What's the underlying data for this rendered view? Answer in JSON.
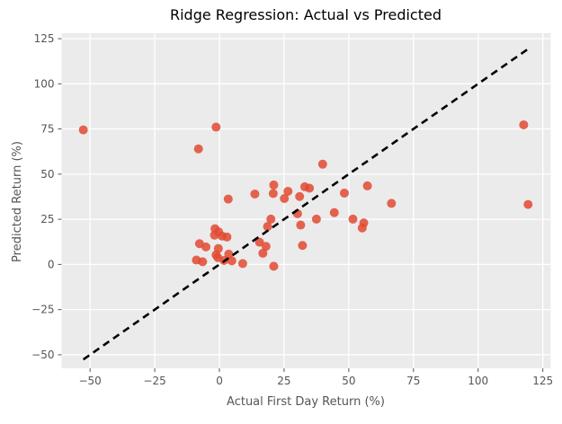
{
  "chart_data": {
    "type": "scatter",
    "title": "Ridge Regression: Actual vs Predicted",
    "xlabel": "Actual First Day Return (%)",
    "ylabel": "Predicted Return (%)",
    "xlim": [
      -61,
      128
    ],
    "ylim": [
      -57.5,
      128
    ],
    "xticks": [
      -50,
      -25,
      0,
      25,
      50,
      75,
      100,
      125
    ],
    "yticks": [
      -50,
      -25,
      0,
      25,
      50,
      75,
      100,
      125
    ],
    "grid": true,
    "legend": "none",
    "style": "ggplot-gray",
    "colors": {
      "figure_background": "#ffffff",
      "axes_background": "#ebebeb",
      "grid": "#ffffff",
      "tick": "#555555",
      "tick_label": "#555555",
      "axis_label": "#555555",
      "title": "#000000",
      "marker": "#E24A33",
      "reference_line": "#000000"
    },
    "series": [
      {
        "name": "predicted-vs-actual",
        "marker": "circle",
        "marker_radius": 5,
        "alpha": 0.85,
        "points": [
          [
            -52.6,
            74.5
          ],
          [
            -8.1,
            64.0
          ],
          [
            -1.3,
            76.0
          ],
          [
            117.6,
            77.3
          ],
          [
            119.3,
            33.2
          ],
          [
            3.4,
            36.2
          ],
          [
            13.7,
            39.0
          ],
          [
            21.0,
            44.0
          ],
          [
            20.8,
            39.3
          ],
          [
            26.5,
            40.5
          ],
          [
            25.1,
            36.5
          ],
          [
            31.0,
            37.6
          ],
          [
            33.0,
            43.0
          ],
          [
            34.8,
            42.2
          ],
          [
            39.9,
            55.5
          ],
          [
            48.3,
            39.5
          ],
          [
            57.2,
            43.5
          ],
          [
            66.5,
            33.8
          ],
          [
            44.4,
            28.7
          ],
          [
            30.2,
            28.1
          ],
          [
            37.5,
            25.1
          ],
          [
            19.9,
            25.1
          ],
          [
            18.6,
            21.0
          ],
          [
            31.4,
            21.8
          ],
          [
            51.6,
            25.1
          ],
          [
            55.8,
            23.0
          ],
          [
            55.2,
            20.2
          ],
          [
            32.1,
            10.5
          ],
          [
            -1.7,
            19.8
          ],
          [
            -0.3,
            18.0
          ],
          [
            -1.9,
            16.2
          ],
          [
            1.0,
            15.7
          ],
          [
            2.9,
            15.2
          ],
          [
            -7.7,
            11.5
          ],
          [
            -5.2,
            9.7
          ],
          [
            -0.4,
            8.8
          ],
          [
            15.5,
            12.3
          ],
          [
            18.0,
            10.0
          ],
          [
            16.8,
            6.2
          ],
          [
            3.6,
            5.7
          ],
          [
            -1.3,
            5.3
          ],
          [
            -0.6,
            3.8
          ],
          [
            -8.9,
            2.4
          ],
          [
            -6.5,
            1.5
          ],
          [
            1.8,
            2.2
          ],
          [
            4.8,
            2.0
          ],
          [
            9.0,
            0.5
          ],
          [
            21.0,
            -1.0
          ]
        ]
      }
    ],
    "reference_line": {
      "name": "identity-line",
      "from": [
        -52.6,
        -52.6
      ],
      "to": [
        119.3,
        119.3
      ],
      "dash": [
        8,
        5.5
      ],
      "width": 2.6
    }
  }
}
